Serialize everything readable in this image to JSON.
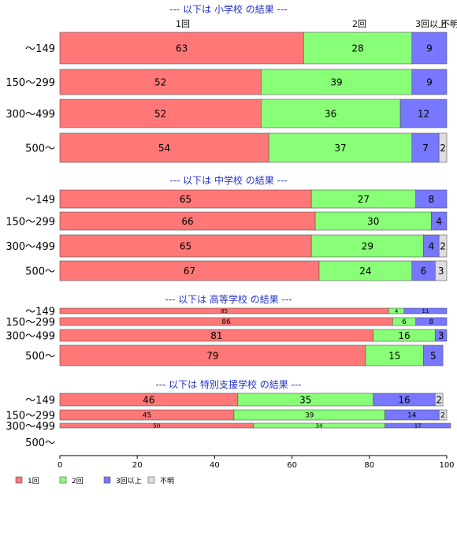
{
  "chart_data": {
    "type": "bar",
    "orientation": "horizontal",
    "stacked": true,
    "xlim": [
      0,
      100
    ],
    "x_ticks": [
      "0",
      "20",
      "40",
      "60",
      "80",
      "100"
    ],
    "grid": false,
    "legend_position": "bottom-left",
    "legend": [
      {
        "name": "1回",
        "color": "#ff7777"
      },
      {
        "name": "2回",
        "color": "#88ff77"
      },
      {
        "name": "3回以上",
        "color": "#7777ff"
      },
      {
        "name": "不明",
        "color": "#dddddd"
      }
    ],
    "top_labels": [
      "1回",
      "2回",
      "3回以上",
      "不明"
    ],
    "categories": [
      "～149",
      "150～299",
      "300～499",
      "500～"
    ],
    "groups": [
      {
        "title": "--- 以下は 小学校 の結果 ---",
        "rows": [
          {
            "category": "～149",
            "values": [
              63,
              28,
              9,
              0
            ]
          },
          {
            "category": "150～299",
            "values": [
              52,
              39,
              9,
              0
            ]
          },
          {
            "category": "300～499",
            "values": [
              52,
              36,
              12,
              0
            ]
          },
          {
            "category": "500～",
            "values": [
              54,
              37,
              7,
              2
            ]
          }
        ]
      },
      {
        "title": "--- 以下は 中学校 の結果 ---",
        "rows": [
          {
            "category": "～149",
            "values": [
              65,
              27,
              8,
              0
            ]
          },
          {
            "category": "150～299",
            "values": [
              66,
              30,
              4,
              0
            ]
          },
          {
            "category": "300～499",
            "values": [
              65,
              29,
              4,
              2
            ]
          },
          {
            "category": "500～",
            "values": [
              67,
              24,
              6,
              3
            ]
          }
        ]
      },
      {
        "title": "--- 以下は 高等学校 の結果 ---",
        "rows": [
          {
            "category": "～149",
            "values": [
              85,
              4,
              11,
              0
            ]
          },
          {
            "category": "150～299",
            "values": [
              86,
              6,
              8,
              0
            ]
          },
          {
            "category": "300～499",
            "values": [
              81,
              16,
              3,
              0
            ]
          },
          {
            "category": "500～",
            "values": [
              79,
              15,
              5,
              0
            ]
          }
        ]
      },
      {
        "title": "--- 以下は 特別支援学校 の結果 ---",
        "rows": [
          {
            "category": "～149",
            "values": [
              46,
              35,
              16,
              2
            ]
          },
          {
            "category": "150～299",
            "values": [
              45,
              39,
              14,
              2
            ]
          },
          {
            "category": "300～499",
            "values": [
              50,
              34,
              17,
              0
            ]
          },
          {
            "category": "500～",
            "values": [
              0,
              0,
              0,
              0
            ]
          }
        ]
      }
    ]
  }
}
